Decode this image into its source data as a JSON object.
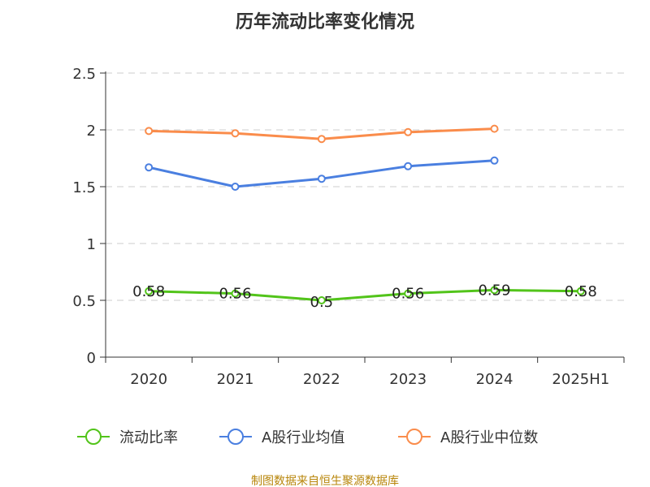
{
  "chart_data": {
    "type": "line",
    "title": "历年流动比率变化情况",
    "categories": [
      "2020",
      "2021",
      "2022",
      "2023",
      "2024",
      "2025H1"
    ],
    "ylim": [
      0,
      2.5
    ],
    "yticks": [
      "0",
      "0.5",
      "1",
      "1.5",
      "2",
      "2.5"
    ],
    "grid": true,
    "legend_position": "bottom",
    "series": [
      {
        "name": "流动比率",
        "color": "#52c41a",
        "values": [
          0.58,
          0.56,
          0.5,
          0.56,
          0.59,
          0.58
        ],
        "labels": [
          "0.58",
          "0.56",
          "0.5",
          "0.56",
          "0.59",
          "0.58"
        ]
      },
      {
        "name": "A股行业均值",
        "color": "#4a7fe0",
        "values": [
          1.67,
          1.5,
          1.57,
          1.68,
          1.73,
          null
        ]
      },
      {
        "name": "A股行业中位数",
        "color": "#fa8c4b",
        "values": [
          1.99,
          1.97,
          1.92,
          1.98,
          2.01,
          null
        ]
      }
    ]
  },
  "source": "制图数据来自恒生聚源数据库"
}
